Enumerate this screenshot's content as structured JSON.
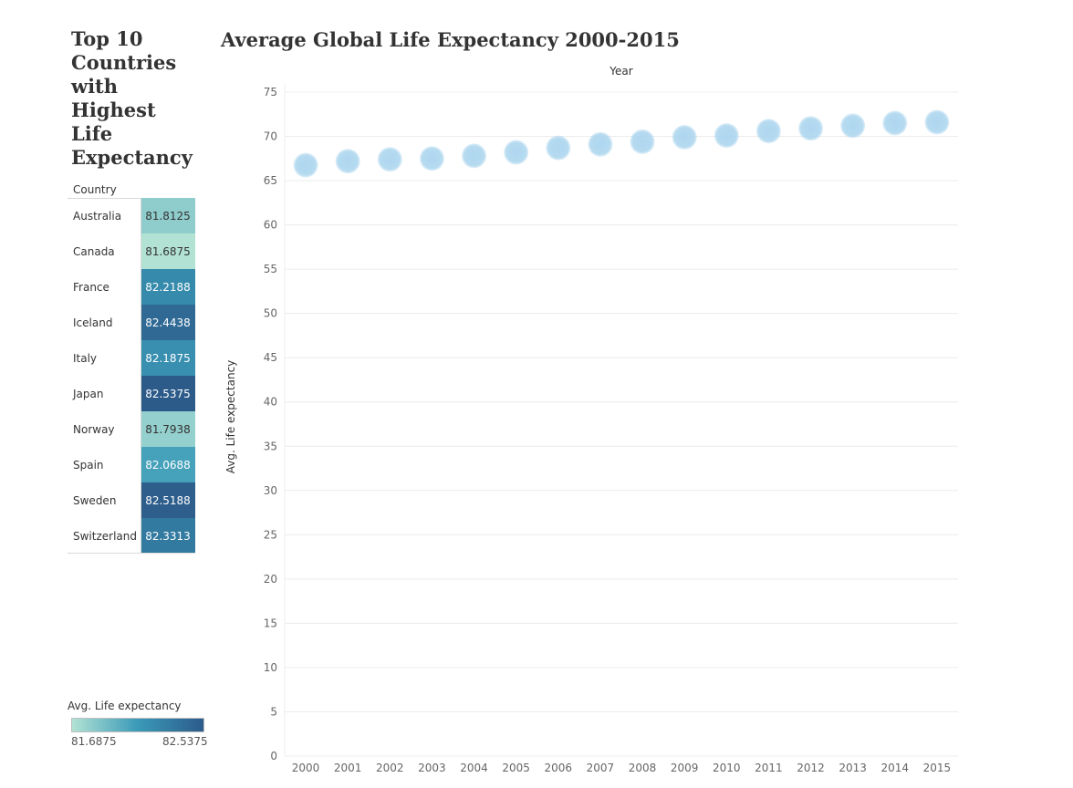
{
  "side_title": "Top 10 Countries with Highest Life Expectancy",
  "table": {
    "header": "Country",
    "rows": [
      {
        "country": "Australia",
        "value": "81.8125"
      },
      {
        "country": "Canada",
        "value": "81.6875"
      },
      {
        "country": "France",
        "value": "82.2188"
      },
      {
        "country": "Iceland",
        "value": "82.4438"
      },
      {
        "country": "Italy",
        "value": "82.1875"
      },
      {
        "country": "Japan",
        "value": "82.5375"
      },
      {
        "country": "Norway",
        "value": "81.7938"
      },
      {
        "country": "Spain",
        "value": "82.0688"
      },
      {
        "country": "Sweden",
        "value": "82.5188"
      },
      {
        "country": "Switzerland",
        "value": "82.3313"
      }
    ]
  },
  "legend": {
    "title": "Avg. Life expectancy",
    "min_label": "81.6875",
    "max_label": "82.5375",
    "min_value": 81.6875,
    "max_value": 82.5375,
    "color_low": "#b2e2d4",
    "color_mid": "#3a9ab8",
    "color_high": "#2c5b8a"
  },
  "chart_data": {
    "type": "scatter",
    "title": "Average Global Life Expectancy 2000-2015",
    "xlabel": "Year",
    "ylabel": "Avg. Life expectancy",
    "categories": [
      "2000",
      "2001",
      "2002",
      "2003",
      "2004",
      "2005",
      "2006",
      "2007",
      "2008",
      "2009",
      "2010",
      "2011",
      "2012",
      "2013",
      "2014",
      "2015"
    ],
    "values": [
      66.75,
      67.2,
      67.4,
      67.5,
      67.8,
      68.2,
      68.7,
      69.1,
      69.4,
      69.9,
      70.1,
      70.6,
      70.9,
      71.2,
      71.5,
      71.6
    ],
    "ylim": [
      0,
      75
    ],
    "yticks": [
      0,
      5,
      10,
      15,
      20,
      25,
      30,
      35,
      40,
      45,
      50,
      55,
      60,
      65,
      70,
      75
    ],
    "grid": true,
    "marker_color": "#a9d4ee",
    "x_axis_position": "top"
  }
}
